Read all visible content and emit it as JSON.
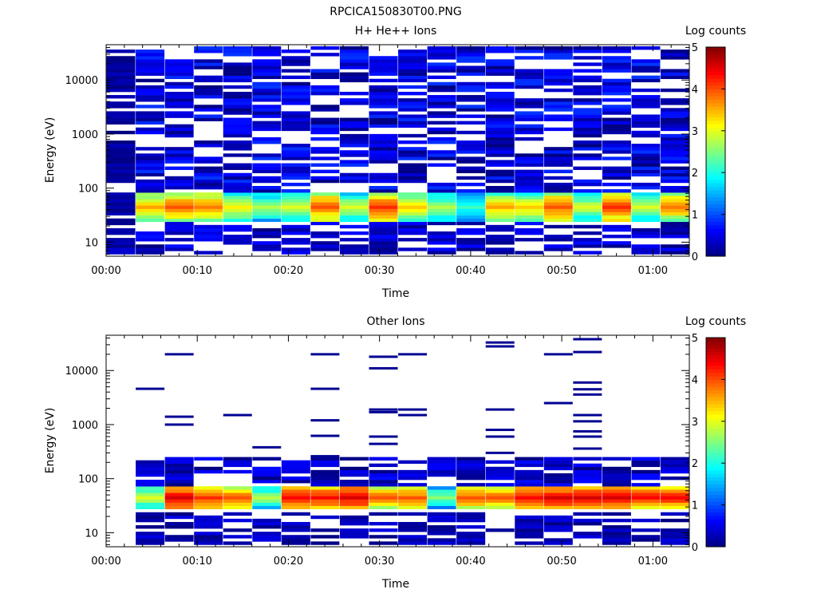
{
  "figure": {
    "title": "RPCICA150830T00.PNG"
  },
  "colorbar": {
    "title": "Log counts",
    "min": 0,
    "max": 5,
    "ticks": [
      "0",
      "1",
      "2",
      "3",
      "4",
      "5"
    ],
    "colormap": [
      "#00007f",
      "#0000ff",
      "#007fff",
      "#00ffff",
      "#7fff7f",
      "#ffff00",
      "#ff7f00",
      "#ff0000",
      "#7f0000"
    ]
  },
  "chart_data": [
    {
      "type": "heatmap",
      "title": "H+ He++ Ions",
      "xlabel": "Time",
      "ylabel": "Energy (eV)",
      "xlim": [
        "00:00",
        "01:04"
      ],
      "ylim": [
        5.5,
        45000
      ],
      "yscale": "log",
      "xticklabels": [
        "00:00",
        "00:10",
        "00:20",
        "00:30",
        "00:40",
        "00:50",
        "01:00"
      ],
      "yticklabels": [
        "10",
        "100",
        "1000",
        "10000"
      ],
      "time_columns": [
        "00:01.6",
        "00:04.8",
        "00:08.0",
        "00:11.2",
        "00:14.4",
        "00:17.6",
        "00:20.8",
        "00:24.0",
        "00:27.2",
        "00:30.4",
        "00:33.6",
        "00:36.8",
        "00:40.0",
        "00:43.2",
        "00:46.4",
        "00:49.6",
        "00:52.8",
        "00:56.0",
        "00:59.2",
        "01:02.4"
      ],
      "band_peak_log_counts": [
        null,
        3.6,
        4.0,
        3.8,
        3.2,
        2.8,
        3.0,
        4.0,
        3.0,
        4.2,
        3.4,
        2.8,
        2.2,
        3.6,
        3.4,
        4.0,
        3.0,
        4.2,
        3.0,
        3.8
      ],
      "band_peak_energy_eV": 45,
      "high_energy_background_log_counts": "0-0.8",
      "description_note": "Plasma band near 30-60 eV with sparse low counts up to ~40000 eV"
    },
    {
      "type": "heatmap",
      "title": "Other Ions",
      "xlabel": "Time",
      "ylabel": "Energy (eV)",
      "xlim": [
        "00:00",
        "01:04"
      ],
      "ylim": [
        5.5,
        45000
      ],
      "yscale": "log",
      "xticklabels": [
        "00:00",
        "00:10",
        "00:20",
        "00:30",
        "00:40",
        "00:50",
        "01:00"
      ],
      "yticklabels": [
        "10",
        "100",
        "1000",
        "10000"
      ],
      "time_columns": [
        "00:01.6",
        "00:04.8",
        "00:08.0",
        "00:11.2",
        "00:14.4",
        "00:17.6",
        "00:20.8",
        "00:24.0",
        "00:27.2",
        "00:30.4",
        "00:33.6",
        "00:36.8",
        "00:40.0",
        "00:43.2",
        "00:46.4",
        "00:49.6",
        "00:52.8",
        "00:56.0",
        "00:59.2",
        "01:02.4"
      ],
      "band_peak_log_counts": [
        null,
        3.0,
        4.6,
        4.2,
        4.0,
        2.8,
        4.4,
        4.4,
        4.6,
        4.0,
        4.0,
        2.6,
        4.0,
        4.0,
        4.4,
        4.6,
        4.6,
        4.6,
        4.4,
        4.4
      ],
      "band_peak_energy_eV": 45,
      "sparse_lines_eV": [
        [
          4600
        ],
        [
          20000,
          1400,
          1000
        ],
        [
          1500
        ],
        [
          380
        ],
        [
          20000,
          4600,
          1200,
          620,
          260
        ],
        [
          18000,
          11000,
          1900,
          1700,
          600,
          440
        ],
        [
          20000,
          1900,
          1500
        ],
        [
          33000,
          28000,
          1900,
          800,
          600,
          300
        ],
        [
          20000,
          2500
        ],
        [
          38000,
          22000,
          6000,
          4500,
          3600,
          1500,
          1150,
          750,
          600,
          360
        ]
      ]
    }
  ]
}
